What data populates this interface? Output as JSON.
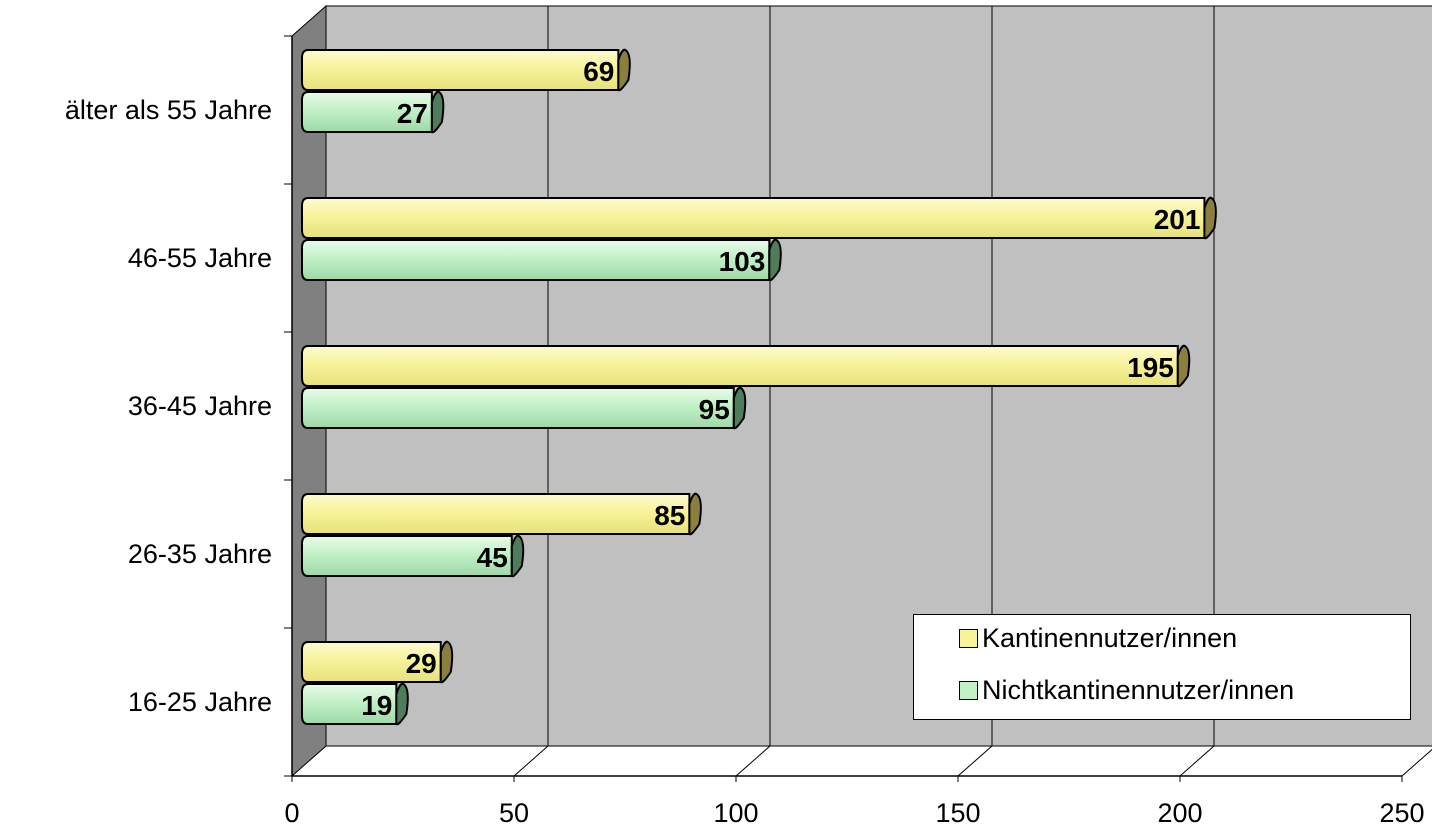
{
  "chart_data": {
    "type": "bar",
    "orientation": "horizontal",
    "style": "3d-cylinder",
    "categories": [
      "16-25 Jahre",
      "26-35 Jahre",
      "36-45 Jahre",
      "46-55 Jahre",
      "älter als 55 Jahre"
    ],
    "series": [
      {
        "name": "Kantinennutzer/innen",
        "values": [
          29,
          85,
          195,
          201,
          69
        ],
        "color": "#f7f39b"
      },
      {
        "name": "Nichtkantinennutzer/innen",
        "values": [
          19,
          45,
          95,
          103,
          27
        ],
        "color": "#c2f1c8"
      }
    ],
    "x_ticks": [
      "0",
      "50",
      "100",
      "150",
      "200",
      "250"
    ],
    "xlim": [
      0,
      250
    ],
    "grid": true,
    "legend_position": "bottom-right",
    "wall_color": "#c0c0c0",
    "side_wall_color": "#808080"
  }
}
